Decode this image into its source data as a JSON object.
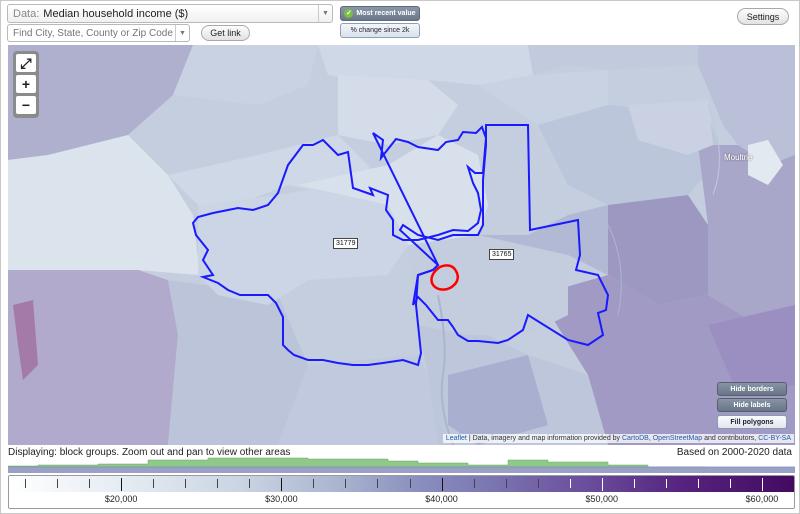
{
  "controls": {
    "data_prefix": "Data:",
    "data_value": "Median household income ($)",
    "search_placeholder": "Find City, State, County or Zip Code",
    "get_link_label": "Get link",
    "settings_label": "Settings",
    "most_recent_label": "Most recent value",
    "pct_change_label": "% change since 2k"
  },
  "map": {
    "zip_labels": [
      "31779",
      "31765"
    ],
    "city_label": "Moultrie",
    "buttons": {
      "hide_borders": "Hide borders",
      "hide_labels": "Hide labels",
      "fill_polygons": "Fill polygons"
    },
    "attribution": {
      "leaflet": "Leaflet",
      "sep1": " | Data, imagery and map information provided by ",
      "cartodb": "CartoDB",
      "sep2": ", ",
      "osm": "OpenStreetMap",
      "sep3": " and contributors, ",
      "license": "CC-BY-SA"
    },
    "colors": {
      "border_blue": "#1a1aff",
      "highlight_red": "#ff0000"
    }
  },
  "footer": {
    "displaying_text": "Displaying: block groups. Zoom out and pan to view other areas",
    "based_on_text": "Based on 2000-2020 data"
  },
  "legend": {
    "labels": [
      "$20,000",
      "$30,000",
      "$40,000",
      "$50,000",
      "$60,000"
    ],
    "label_values": [
      20000,
      30000,
      40000,
      50000,
      60000
    ],
    "range": [
      13000,
      62000
    ],
    "histogram_color": "#8fc98a",
    "histogram_band_color": "#9aa0c8"
  }
}
